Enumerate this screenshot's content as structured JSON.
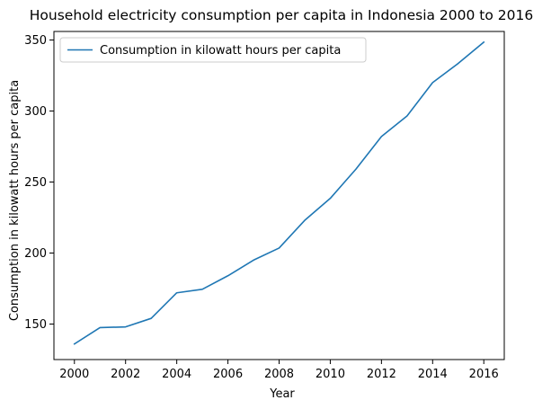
{
  "chart_data": {
    "type": "line",
    "title": "Household electricity consumption per capita in Indonesia 2000 to 2016",
    "xlabel": "Year",
    "ylabel": "Consumption in kilowatt hours per capita",
    "x": [
      2000,
      2001,
      2002,
      2003,
      2004,
      2005,
      2006,
      2007,
      2008,
      2009,
      2010,
      2011,
      2012,
      2013,
      2014,
      2015,
      2016
    ],
    "series": [
      {
        "name": "Consumption in kilowatt hours per capita",
        "color": "#1f77b4",
        "values": [
          136,
          147.5,
          148,
          154,
          172,
          174.5,
          184,
          195,
          203.5,
          223,
          238.5,
          259,
          282,
          296.5,
          320,
          333.5,
          348.5
        ]
      }
    ],
    "xlim": [
      1999.2,
      2016.8
    ],
    "ylim": [
      125,
      356
    ],
    "xticks": [
      2000,
      2002,
      2004,
      2006,
      2008,
      2010,
      2012,
      2014,
      2016
    ],
    "yticks": [
      150,
      200,
      250,
      300,
      350
    ],
    "grid": false,
    "legend_position": "upper-left"
  }
}
